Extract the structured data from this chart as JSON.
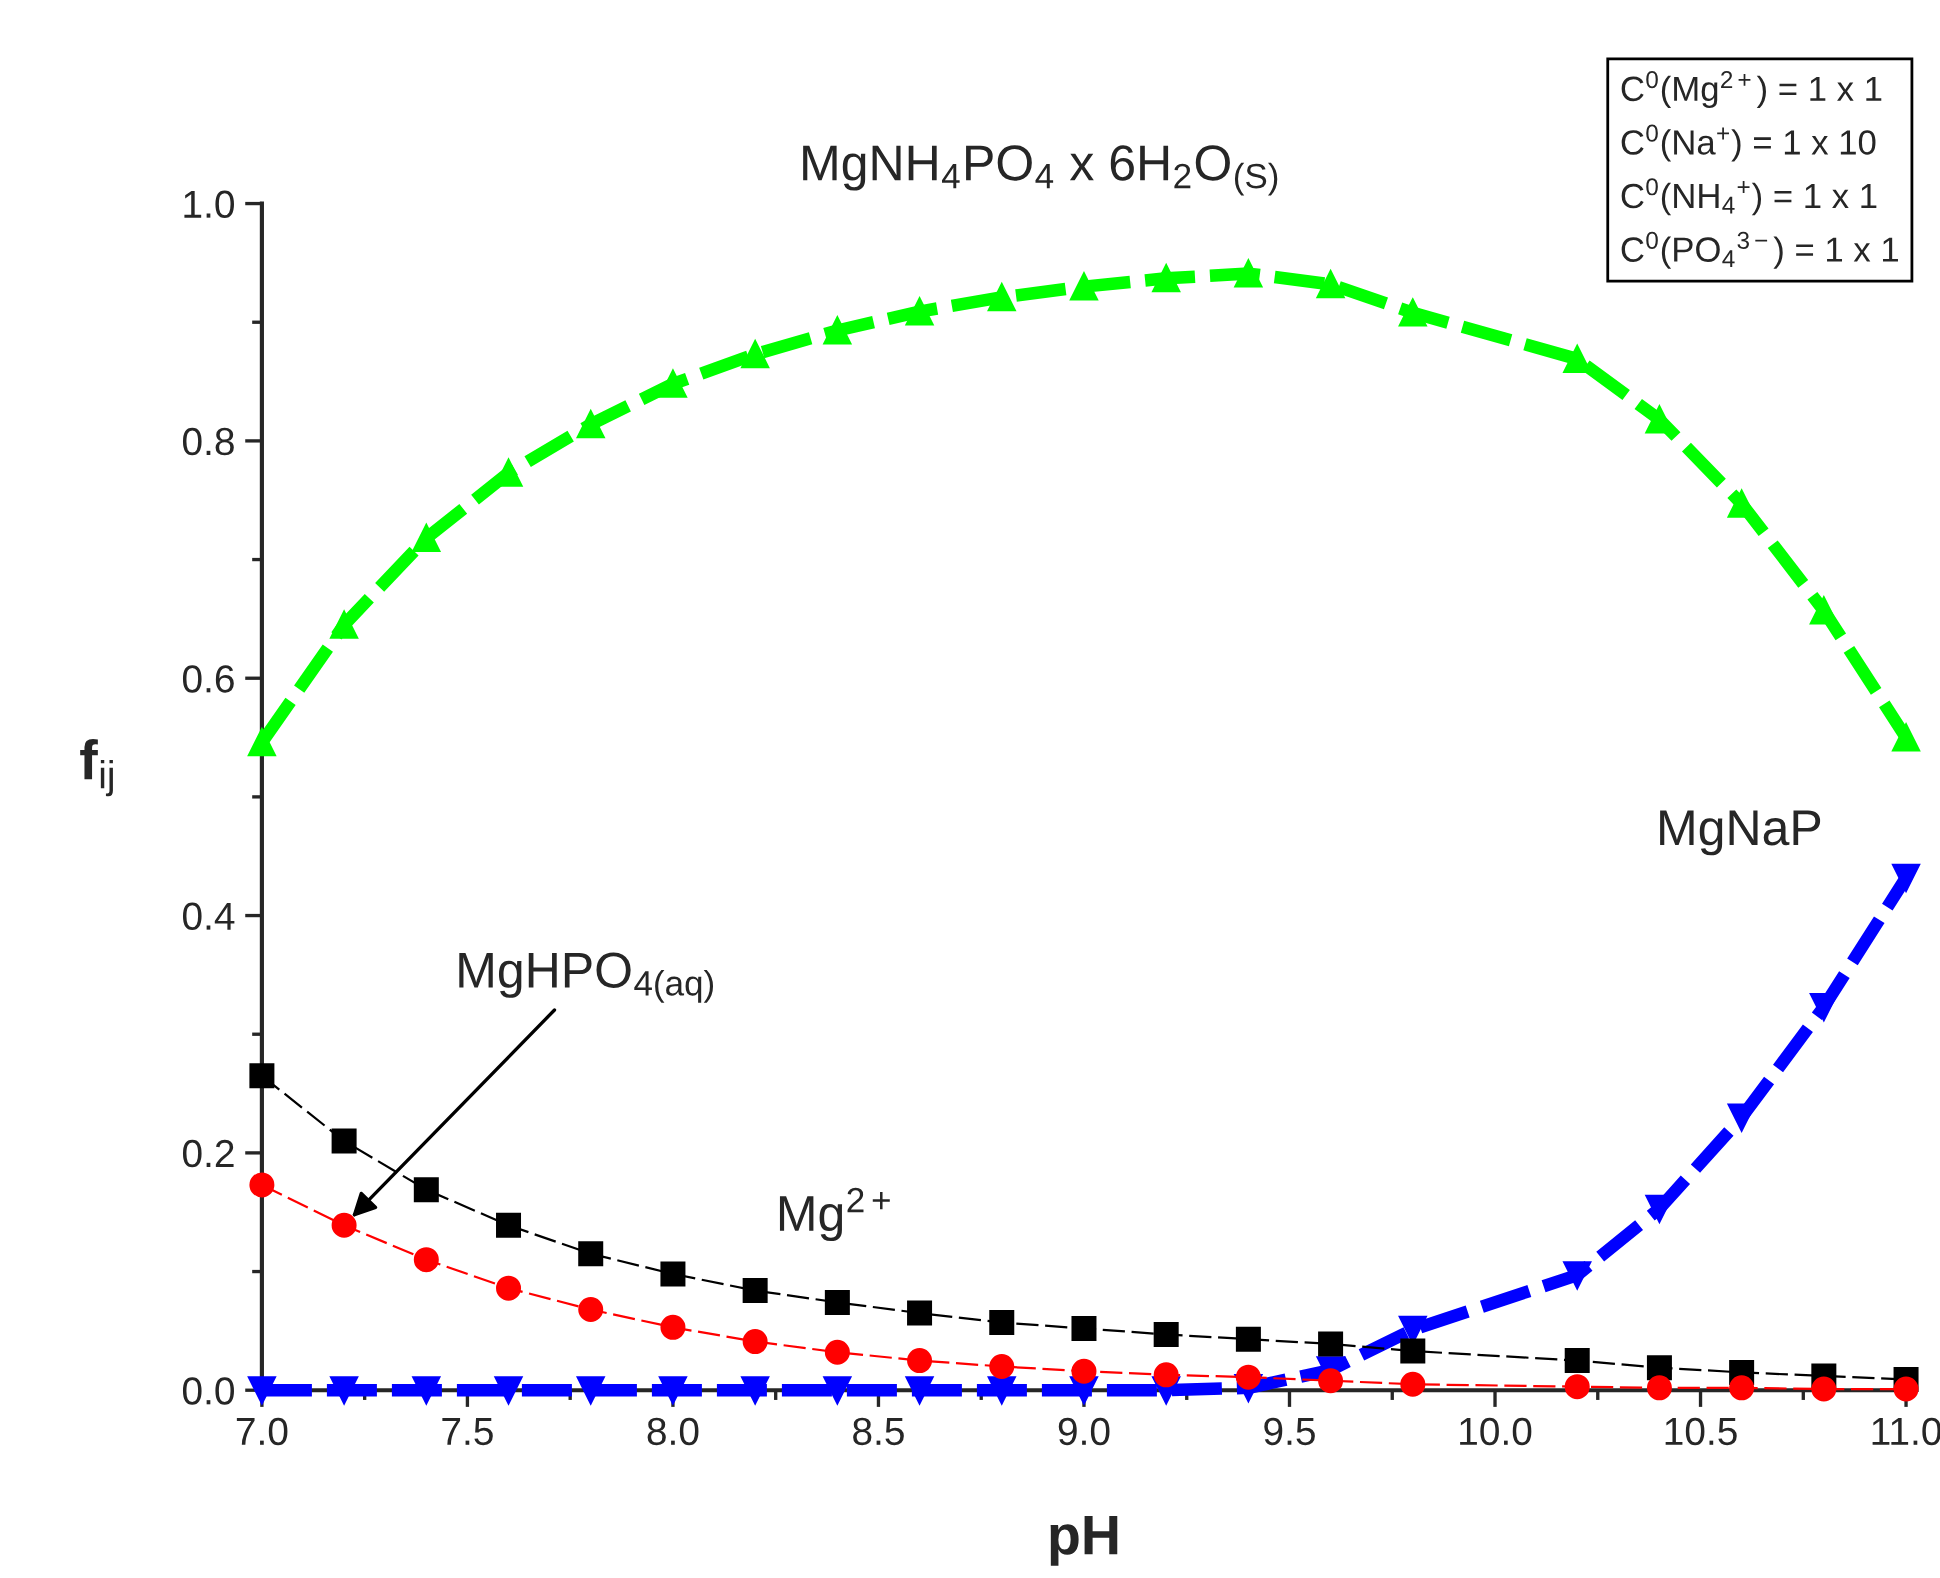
{
  "chart_data": {
    "type": "line",
    "xlabel": "pH",
    "ylabel": "f$_{ij}$",
    "x": [
      7.0,
      7.2,
      7.4,
      7.6,
      7.8,
      8.0,
      8.2,
      8.4,
      8.6,
      8.8,
      9.0,
      9.2,
      9.4,
      9.6,
      9.8,
      10.2,
      10.4,
      10.6,
      10.8,
      11.0
    ],
    "series": [
      {
        "color": "#00ff00",
        "marker": "triangle",
        "line_style": "dashed",
        "values": [
          0.546,
          0.645,
          0.718,
          0.773,
          0.814,
          0.848,
          0.873,
          0.893,
          0.909,
          0.921,
          0.93,
          0.937,
          0.941,
          0.932,
          0.908,
          0.869,
          0.818,
          0.747,
          0.657,
          0.55
        ]
      },
      {
        "color": "#0000ff",
        "marker": "triangle_down",
        "line_style": "dashed",
        "values": [
          0.0,
          0.0,
          0.0,
          0.0,
          0.0,
          0.0,
          0.0,
          0.0,
          0.0,
          0.0,
          0.0,
          0.0,
          0.002,
          0.017,
          0.051,
          0.097,
          0.153,
          0.23,
          0.323,
          0.432
        ]
      },
      {
        "color": "#000000",
        "marker": "square",
        "line_style": "dashed",
        "values": [
          0.265,
          0.21,
          0.169,
          0.139,
          0.115,
          0.098,
          0.084,
          0.074,
          0.065,
          0.057,
          0.052,
          0.047,
          0.043,
          0.039,
          0.033,
          0.025,
          0.019,
          0.015,
          0.012,
          0.009
        ]
      },
      {
        "color": "#ff0000",
        "marker": "circle",
        "line_style": "dashed",
        "values": [
          0.173,
          0.139,
          0.11,
          0.086,
          0.068,
          0.053,
          0.041,
          0.032,
          0.025,
          0.02,
          0.016,
          0.013,
          0.011,
          0.008,
          0.005,
          0.003,
          0.002,
          0.002,
          0.001,
          0.001
        ]
      }
    ],
    "xlim": [
      7.0,
      11.0
    ],
    "ylim": [
      0.0,
      1.0
    ],
    "xticks": [
      {
        "value": 7.0,
        "label": "7.0"
      },
      {
        "value": 7.5,
        "label": "7.5"
      },
      {
        "value": 8.0,
        "label": "8.0"
      },
      {
        "value": 8.5,
        "label": "8.5"
      },
      {
        "value": 9.0,
        "label": "9.0"
      },
      {
        "value": 9.5,
        "label": "9.5"
      },
      {
        "value": 10.0,
        "label": "10.0"
      },
      {
        "value": 10.5,
        "label": "10.5"
      },
      {
        "value": 11.0,
        "label": "11.0"
      }
    ],
    "yticks": [
      {
        "value": 0.0,
        "label": "0.0"
      },
      {
        "value": 0.2,
        "label": "0.2"
      },
      {
        "value": 0.4,
        "label": "0.4"
      },
      {
        "value": 0.6,
        "label": "0.6"
      },
      {
        "value": 0.8,
        "label": "0.8"
      },
      {
        "value": 1.0,
        "label": "1.0"
      }
    ],
    "grid": false,
    "annotations": [
      {
        "text": "MgNH$_{4}$PO$_{4}$ x 6H$_{2}$O$_{(S)}$",
        "x": 9.4,
        "y": 0.941
      },
      {
        "text": "MgNaP",
        "x": 11.0,
        "y": 0.432
      },
      {
        "text": "MgHPO$_{4(aq)}$",
        "x": 7.2,
        "y": 0.139
      },
      {
        "text": "Mg$^{2+}$",
        "x": 8.4,
        "y": 0.074
      },
      "C$^{0}$(Mg$^{2+}$) = 1 x 1",
      "C$^{0}$(Na$^{+}$) = 1 x 10",
      "C$^{0}$(NH$_{4}$$^{+}$) = 1 x 1",
      "C$^{0}$(PO$_{4}$$^{3−}$) = 1 x 1"
    ]
  }
}
